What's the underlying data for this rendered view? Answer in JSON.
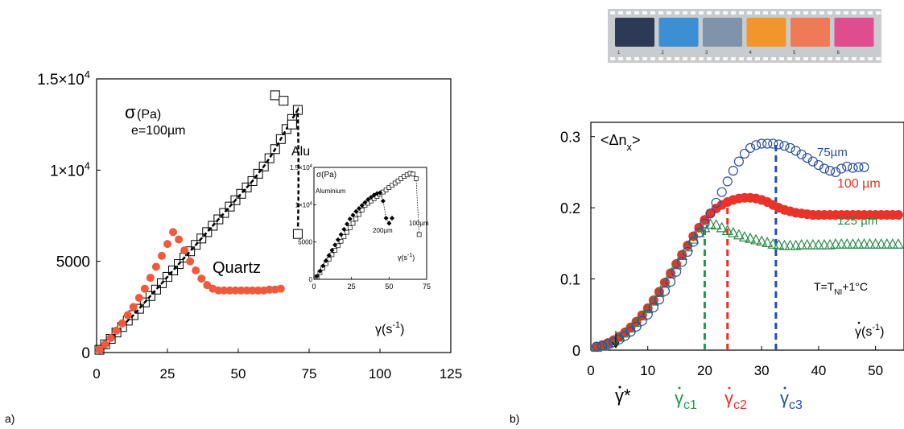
{
  "panel_a": {
    "label": "a)",
    "y_sigma": "σ",
    "y_unit": "(Pa)",
    "thickness": "e=100µm",
    "series_alu_label": "Alu",
    "series_quartz_label": "Quartz",
    "x_label": "γ(s",
    "x_label_exp": "-1",
    "x_label_close": ")",
    "y_ticks": [
      {
        "value": 0,
        "mant": "0",
        "exp": ""
      },
      {
        "value": 5000,
        "mant": "5000",
        "exp": ""
      },
      {
        "value": 10000,
        "mant": "1×10",
        "exp": "4"
      },
      {
        "value": 15000,
        "mant": "1.5×10",
        "exp": "4"
      }
    ],
    "x_ticks": [
      "0",
      "25",
      "50",
      "75",
      "100",
      "125"
    ]
  },
  "inset": {
    "sigma": "σ",
    "unit": "(Pa)",
    "material": "Aluminium",
    "label_100": "100µm",
    "label_200": "200µm",
    "x_label": "γ(s",
    "x_label_exp": "-1",
    "x_label_close": ")",
    "y_ticks": [
      {
        "value": 0,
        "mant": "0",
        "exp": ""
      },
      {
        "value": 5000,
        "mant": "5000",
        "exp": ""
      },
      {
        "value": 10000,
        "mant": "1×10",
        "exp": "4"
      },
      {
        "value": 15000,
        "mant": "1.5×10",
        "exp": "4"
      }
    ],
    "x_ticks": [
      "0",
      "25",
      "50",
      "75"
    ]
  },
  "panel_b": {
    "label": "b)",
    "y_label_pre": "<Δn",
    "y_label_sub": "x",
    "y_label_post": ">",
    "label_75": "75µm",
    "label_100": "100 µm",
    "label_125": "125 µm",
    "temp_pre": "T=T",
    "temp_sub": "NI",
    "temp_post": "+1°C",
    "x_label": "γ(s",
    "x_label_exp": "-1",
    "x_label_close": ")",
    "gamma_star": "γ*",
    "gamma_c1": "γ",
    "gamma_c1_sub": "c1",
    "gamma_c2": "γ",
    "gamma_c2_sub": "c2",
    "gamma_c3": "γ",
    "gamma_c3_sub": "c3",
    "y_ticks": [
      "0",
      "0.1",
      "0.2",
      "0.3"
    ],
    "x_ticks": [
      "0",
      "10",
      "20",
      "30",
      "40",
      "50"
    ]
  },
  "film_strip": {
    "frame_numbers": [
      "1",
      "2",
      "3",
      "4",
      "5",
      "6"
    ],
    "frame_colors": [
      "#2c3a55",
      "#3d8fd4",
      "#7f93aa",
      "#f0962b",
      "#f07a55",
      "#e04c8e"
    ]
  },
  "colors": {
    "quartz": "#f05a3c",
    "red100": "#e8322a",
    "blue75": "#2a4fa0",
    "green125": "#2a8a48",
    "critical_c1": "#1e9a4a",
    "critical_c2": "#e8322a",
    "critical_c3": "#1f4fb0",
    "label_75": "#2a4fa0",
    "label_125": "#2a8a48"
  },
  "chart_data": [
    {
      "type": "scatter",
      "panel": "a",
      "xlim": [
        0,
        125
      ],
      "ylim": [
        0,
        15000
      ],
      "grid": false,
      "series": [
        {
          "name": "Alu",
          "marker": "open-square-with-dot",
          "x": [
            1,
            3,
            5,
            7,
            9,
            11,
            13,
            15,
            17,
            19,
            21,
            23,
            25,
            27,
            29,
            31,
            33,
            35,
            37,
            39,
            41,
            43,
            45,
            47,
            49,
            51,
            53,
            55,
            57,
            59,
            61,
            63,
            65,
            67,
            69,
            71
          ],
          "y": [
            150,
            450,
            750,
            1100,
            1400,
            1750,
            2050,
            2400,
            2750,
            3100,
            3450,
            3800,
            4150,
            4500,
            4850,
            5200,
            5550,
            5900,
            6250,
            6600,
            6950,
            7300,
            7650,
            8000,
            8350,
            8700,
            9050,
            9400,
            9800,
            10200,
            10650,
            11150,
            11700,
            12250,
            12800,
            13300
          ]
        },
        {
          "name": "Alu-drop",
          "marker": "open-square",
          "x": [
            63,
            66,
            69,
            71
          ],
          "y": [
            14100,
            13800,
            12500,
            6500
          ]
        },
        {
          "name": "Quartz",
          "marker": "filled-circle",
          "x": [
            1,
            3,
            5,
            7,
            9,
            11,
            13,
            15,
            17,
            19,
            21,
            23,
            25,
            27,
            29,
            31,
            33,
            35,
            37,
            39,
            41,
            43,
            45,
            47,
            49,
            51,
            53,
            55,
            57,
            59,
            61,
            63,
            65
          ],
          "y": [
            150,
            450,
            800,
            1200,
            1600,
            2050,
            2500,
            3000,
            3500,
            4100,
            4700,
            5300,
            5950,
            6600,
            6200,
            5600,
            5000,
            4500,
            4050,
            3700,
            3500,
            3400,
            3400,
            3400,
            3400,
            3400,
            3400,
            3400,
            3400,
            3400,
            3450,
            3450,
            3500
          ]
        }
      ]
    },
    {
      "type": "scatter",
      "panel": "inset",
      "xlim": [
        0,
        75
      ],
      "ylim": [
        0,
        15000
      ],
      "series": [
        {
          "name": "100µm",
          "marker": "open-square",
          "x": [
            2,
            4,
            6,
            8,
            10,
            12,
            14,
            16,
            18,
            20,
            22,
            24,
            26,
            28,
            30,
            32,
            34,
            36,
            38,
            40,
            42,
            44,
            46,
            48,
            50,
            52,
            54,
            56,
            58,
            60,
            62,
            64,
            66,
            68,
            70
          ],
          "y": [
            300,
            900,
            1500,
            2100,
            2700,
            3300,
            3900,
            4500,
            5100,
            5700,
            6300,
            6900,
            7500,
            8100,
            8700,
            9300,
            9900,
            10200,
            10500,
            10800,
            11100,
            11400,
            11700,
            12000,
            12300,
            12600,
            12900,
            13200,
            13500,
            13800,
            14000,
            14200,
            14100,
            13500,
            6000
          ]
        },
        {
          "name": "200µm",
          "marker": "filled-diamond",
          "x": [
            2,
            4,
            6,
            8,
            10,
            12,
            14,
            16,
            18,
            20,
            22,
            24,
            26,
            28,
            30,
            32,
            34,
            36,
            38,
            40,
            42,
            44,
            46,
            48,
            50,
            52
          ],
          "y": [
            400,
            1100,
            1800,
            2500,
            3200,
            3900,
            4600,
            5300,
            6000,
            6700,
            7400,
            8100,
            8600,
            9100,
            9500,
            9900,
            10300,
            10700,
            11000,
            11300,
            11500,
            11600,
            10500,
            8200,
            7500,
            8200
          ]
        }
      ]
    },
    {
      "type": "scatter",
      "panel": "b",
      "xlim": [
        0,
        55
      ],
      "ylim": [
        0,
        0.32
      ],
      "grid": false,
      "series": [
        {
          "name": "75µm",
          "marker": "open-circle",
          "x": [
            1,
            2,
            3,
            4,
            5,
            6,
            7,
            8,
            9,
            10,
            11,
            12,
            13,
            14,
            15,
            16,
            17,
            18,
            19,
            20,
            21,
            22,
            23,
            24,
            25,
            26,
            27,
            28,
            29,
            30,
            31,
            32,
            33,
            34,
            35,
            36,
            37,
            38,
            39,
            40,
            41,
            42,
            43,
            44,
            45,
            46,
            47,
            48
          ],
          "y": [
            0.005,
            0.006,
            0.008,
            0.011,
            0.015,
            0.02,
            0.026,
            0.033,
            0.041,
            0.05,
            0.06,
            0.071,
            0.083,
            0.096,
            0.11,
            0.124,
            0.138,
            0.152,
            0.165,
            0.178,
            0.192,
            0.207,
            0.222,
            0.237,
            0.252,
            0.265,
            0.276,
            0.284,
            0.288,
            0.29,
            0.29,
            0.29,
            0.289,
            0.287,
            0.284,
            0.28,
            0.275,
            0.27,
            0.265,
            0.26,
            0.255,
            0.252,
            0.25,
            0.255,
            0.258,
            0.256,
            0.257,
            0.257
          ]
        },
        {
          "name": "100 µm",
          "marker": "filled-circle",
          "x": [
            1,
            2,
            3,
            4,
            5,
            6,
            7,
            8,
            9,
            10,
            11,
            12,
            13,
            14,
            15,
            16,
            17,
            18,
            19,
            20,
            21,
            22,
            23,
            24,
            25,
            26,
            27,
            28,
            29,
            30,
            31,
            32,
            33,
            34,
            35,
            36,
            37,
            38,
            39,
            40,
            41,
            42,
            43,
            44,
            45,
            46,
            47,
            48,
            49,
            50,
            51,
            52,
            53,
            54
          ],
          "y": [
            0.005,
            0.007,
            0.01,
            0.014,
            0.019,
            0.025,
            0.032,
            0.04,
            0.049,
            0.059,
            0.07,
            0.082,
            0.095,
            0.108,
            0.121,
            0.134,
            0.147,
            0.16,
            0.172,
            0.183,
            0.192,
            0.199,
            0.204,
            0.208,
            0.211,
            0.213,
            0.214,
            0.214,
            0.213,
            0.211,
            0.208,
            0.204,
            0.2,
            0.197,
            0.195,
            0.193,
            0.192,
            0.191,
            0.19,
            0.19,
            0.19,
            0.19,
            0.19,
            0.19,
            0.19,
            0.19,
            0.19,
            0.19,
            0.19,
            0.19,
            0.19,
            0.19,
            0.19,
            0.19
          ]
        },
        {
          "name": "125 µm",
          "marker": "open-triangle",
          "x": [
            1,
            2,
            3,
            4,
            5,
            6,
            7,
            8,
            9,
            10,
            11,
            12,
            13,
            14,
            15,
            16,
            17,
            18,
            19,
            20,
            21,
            22,
            23,
            24,
            25,
            26,
            27,
            28,
            29,
            30,
            31,
            32,
            33,
            34,
            35,
            36,
            37,
            38,
            39,
            40,
            41,
            42,
            43,
            44,
            45,
            46,
            47,
            48,
            49,
            50,
            51,
            52,
            53,
            54
          ],
          "y": [
            0.004,
            0.006,
            0.009,
            0.013,
            0.018,
            0.024,
            0.031,
            0.039,
            0.048,
            0.058,
            0.069,
            0.081,
            0.094,
            0.107,
            0.12,
            0.133,
            0.145,
            0.156,
            0.165,
            0.172,
            0.177,
            0.176,
            0.172,
            0.168,
            0.165,
            0.162,
            0.159,
            0.157,
            0.155,
            0.153,
            0.151,
            0.149,
            0.148,
            0.147,
            0.147,
            0.147,
            0.148,
            0.148,
            0.148,
            0.148,
            0.148,
            0.148,
            0.149,
            0.149,
            0.149,
            0.149,
            0.149,
            0.149,
            0.149,
            0.149,
            0.149,
            0.149,
            0.149,
            0.149
          ]
        }
      ],
      "critical_rates": [
        {
          "name": "γc1",
          "x": 20,
          "color": "#1e9a4a"
        },
        {
          "name": "γc2",
          "x": 24,
          "color": "#e8322a"
        },
        {
          "name": "γc3",
          "x": 32.5,
          "color": "#1f4fb0"
        }
      ],
      "gamma_star_x": 5
    }
  ]
}
